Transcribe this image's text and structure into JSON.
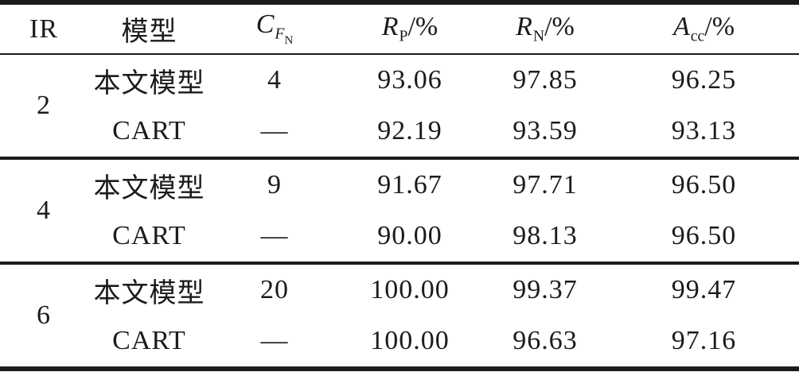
{
  "page": {
    "background": "#ffffff",
    "text_color": "#1b1b1b",
    "rule_color": "#1b1b1b"
  },
  "table": {
    "columns": [
      {
        "label": "IR"
      },
      {
        "label": "模型"
      },
      {
        "main": "C",
        "sub": "F",
        "subsub": "N"
      },
      {
        "main": "R",
        "sub": "P",
        "suffix": "/%"
      },
      {
        "main": "R",
        "sub": "N",
        "suffix": "/%"
      },
      {
        "main": "A",
        "sub": "cc",
        "suffix": "/%"
      }
    ],
    "groups": [
      {
        "ir": "2",
        "rows": [
          {
            "model": "本文模型",
            "cfn": "4",
            "rp": "93.06",
            "rn": "97.85",
            "acc": "96.25"
          },
          {
            "model": "CART",
            "cfn": "—",
            "rp": "92.19",
            "rn": "93.59",
            "acc": "93.13"
          }
        ]
      },
      {
        "ir": "4",
        "rows": [
          {
            "model": "本文模型",
            "cfn": "9",
            "rp": "91.67",
            "rn": "97.71",
            "acc": "96.50"
          },
          {
            "model": "CART",
            "cfn": "—",
            "rp": "90.00",
            "rn": "98.13",
            "acc": "96.50"
          }
        ]
      },
      {
        "ir": "6",
        "rows": [
          {
            "model": "本文模型",
            "cfn": "20",
            "rp": "100.00",
            "rn": "99.37",
            "acc": "99.47"
          },
          {
            "model": "CART",
            "cfn": "—",
            "rp": "100.00",
            "rn": "96.63",
            "acc": "97.16"
          }
        ]
      }
    ]
  },
  "chart_data": {
    "type": "table",
    "columns": [
      "IR",
      "模型",
      "C_FN",
      "R_P/%",
      "R_N/%",
      "A_cc/%"
    ],
    "rows": [
      [
        "2",
        "本文模型",
        "4",
        "93.06",
        "97.85",
        "96.25"
      ],
      [
        "2",
        "CART",
        "—",
        "92.19",
        "93.59",
        "93.13"
      ],
      [
        "4",
        "本文模型",
        "9",
        "91.67",
        "97.71",
        "96.50"
      ],
      [
        "4",
        "CART",
        "—",
        "90.00",
        "98.13",
        "96.50"
      ],
      [
        "6",
        "本文模型",
        "20",
        "100.00",
        "99.37",
        "99.47"
      ],
      [
        "6",
        "CART",
        "—",
        "100.00",
        "96.63",
        "97.16"
      ]
    ]
  }
}
